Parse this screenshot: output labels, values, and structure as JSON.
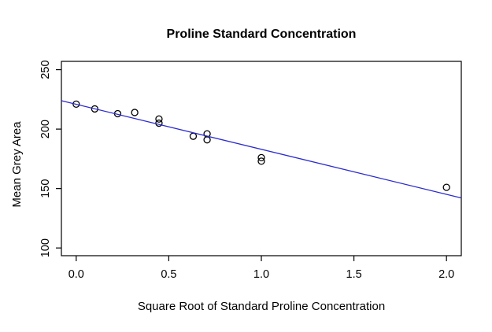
{
  "chart_data": {
    "type": "scatter",
    "title": "Proline Standard Concentration",
    "xlabel": "Square Root of Standard Proline Concentration",
    "ylabel": "Mean Grey Area",
    "xlim": [
      -0.08,
      2.08
    ],
    "ylim": [
      93.5,
      257
    ],
    "grid": false,
    "legend": "none",
    "x_ticks": [
      {
        "value": 0.0,
        "label": "0.0"
      },
      {
        "value": 0.5,
        "label": "0.5"
      },
      {
        "value": 1.0,
        "label": "1.0"
      },
      {
        "value": 1.5,
        "label": "1.5"
      },
      {
        "value": 2.0,
        "label": "2.0"
      }
    ],
    "y_ticks": [
      {
        "value": 100,
        "label": "100"
      },
      {
        "value": 150,
        "label": "150"
      },
      {
        "value": 200,
        "label": "200"
      },
      {
        "value": 250,
        "label": "250"
      }
    ],
    "marker": "open-circle",
    "points": [
      [
        0.0,
        221
      ],
      [
        0.1,
        217
      ],
      [
        0.224,
        213
      ],
      [
        0.316,
        214
      ],
      [
        0.447,
        208.5
      ],
      [
        0.447,
        205
      ],
      [
        0.632,
        194
      ],
      [
        0.707,
        196
      ],
      [
        0.707,
        191
      ],
      [
        1.0,
        176
      ],
      [
        1.0,
        173
      ],
      [
        2.0,
        151
      ]
    ],
    "fit_line": {
      "slope": -37.9,
      "intercept": 220.9,
      "x_start": -0.08,
      "x_end": 2.08
    },
    "colors": {
      "points": "#000000",
      "fit_line": "#2a2ace",
      "axis": "#000000",
      "background": "#ffffff"
    }
  }
}
